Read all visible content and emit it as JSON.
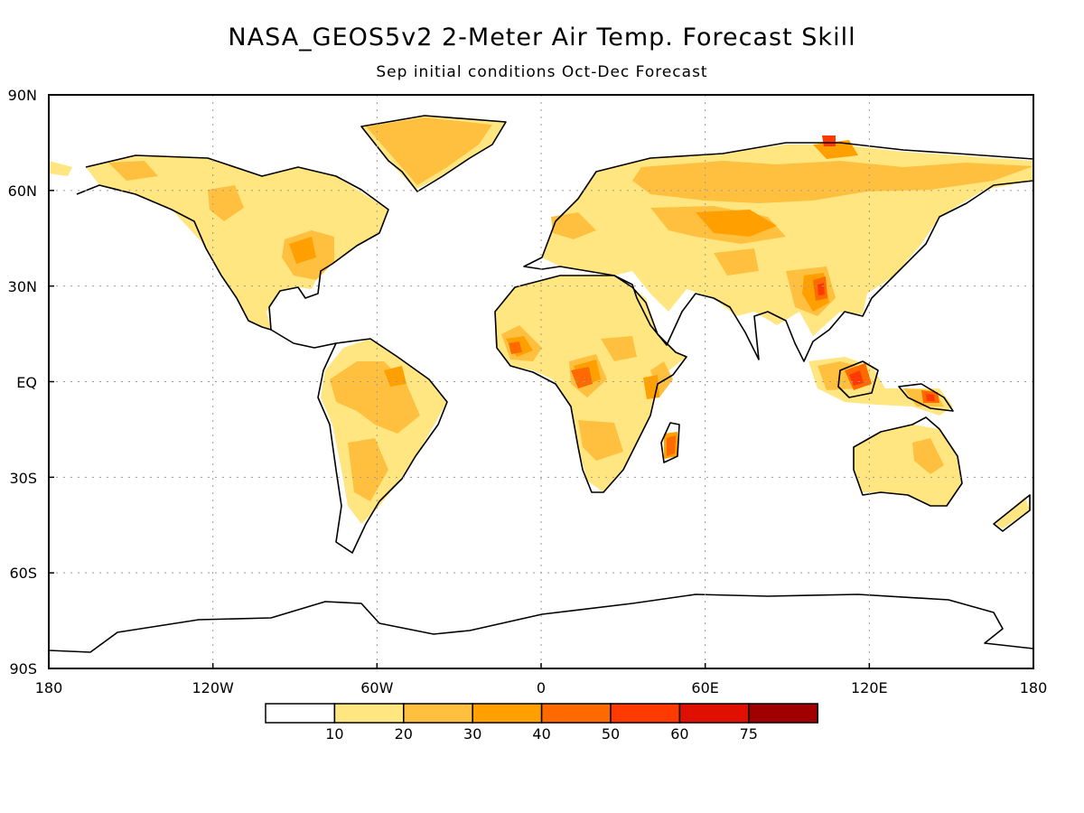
{
  "title": "NASA_GEOS5v2 2-Meter Air Temp. Forecast Skill",
  "subtitle": "Sep initial conditions  Oct-Dec Forecast",
  "lat_labels": [
    "90N",
    "60N",
    "30N",
    "EQ",
    "30S",
    "60S",
    "90S"
  ],
  "lon_labels": [
    "180",
    "120W",
    "60W",
    "0",
    "60E",
    "120E",
    "180"
  ],
  "colorbar": {
    "colors": [
      "#ffffff",
      "#ffe680",
      "#ffc040",
      "#ffa000",
      "#ff6a00",
      "#ff3a00",
      "#e01000",
      "#a00000"
    ],
    "labels": [
      "10",
      "20",
      "30",
      "40",
      "50",
      "60",
      "75"
    ]
  }
}
